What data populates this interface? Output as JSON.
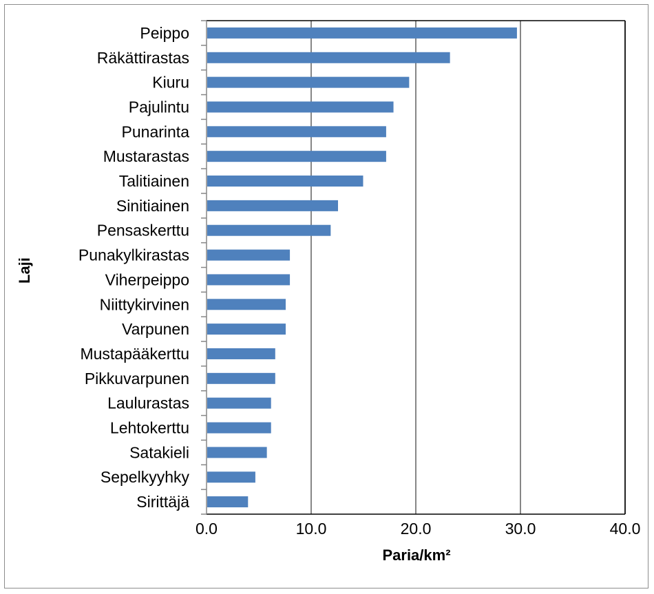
{
  "chart_data": {
    "type": "bar",
    "orientation": "horizontal",
    "categories": [
      "Peippo",
      "Räkättirastas",
      "Kiuru",
      "Pajulintu",
      "Punarinta",
      "Mustarastas",
      "Talitiainen",
      "Sinitiainen",
      "Pensaskerttu",
      "Punakylkirastas",
      "Viherpeippo",
      "Niittykirvinen",
      "Varpunen",
      "Mustapääkerttu",
      "Pikkuvarpunen",
      "Laulurastas",
      "Lehtokerttu",
      "Satakieli",
      "Sepelkyyhky",
      "Sirittäjä"
    ],
    "values": [
      29.6,
      23.2,
      19.3,
      17.8,
      17.1,
      17.1,
      14.9,
      12.5,
      11.8,
      7.9,
      7.9,
      7.5,
      7.5,
      6.5,
      6.5,
      6.1,
      6.1,
      5.7,
      4.6,
      3.9
    ],
    "xlabel": "Paria/km²",
    "ylabel": "Laji",
    "xlim": [
      0,
      40
    ],
    "xticks": [
      "0.0",
      "10.0",
      "20.0",
      "30.0",
      "40.0"
    ],
    "grid": "vertical",
    "bar_color": "#4f81bd",
    "grid_color": "#868686"
  }
}
